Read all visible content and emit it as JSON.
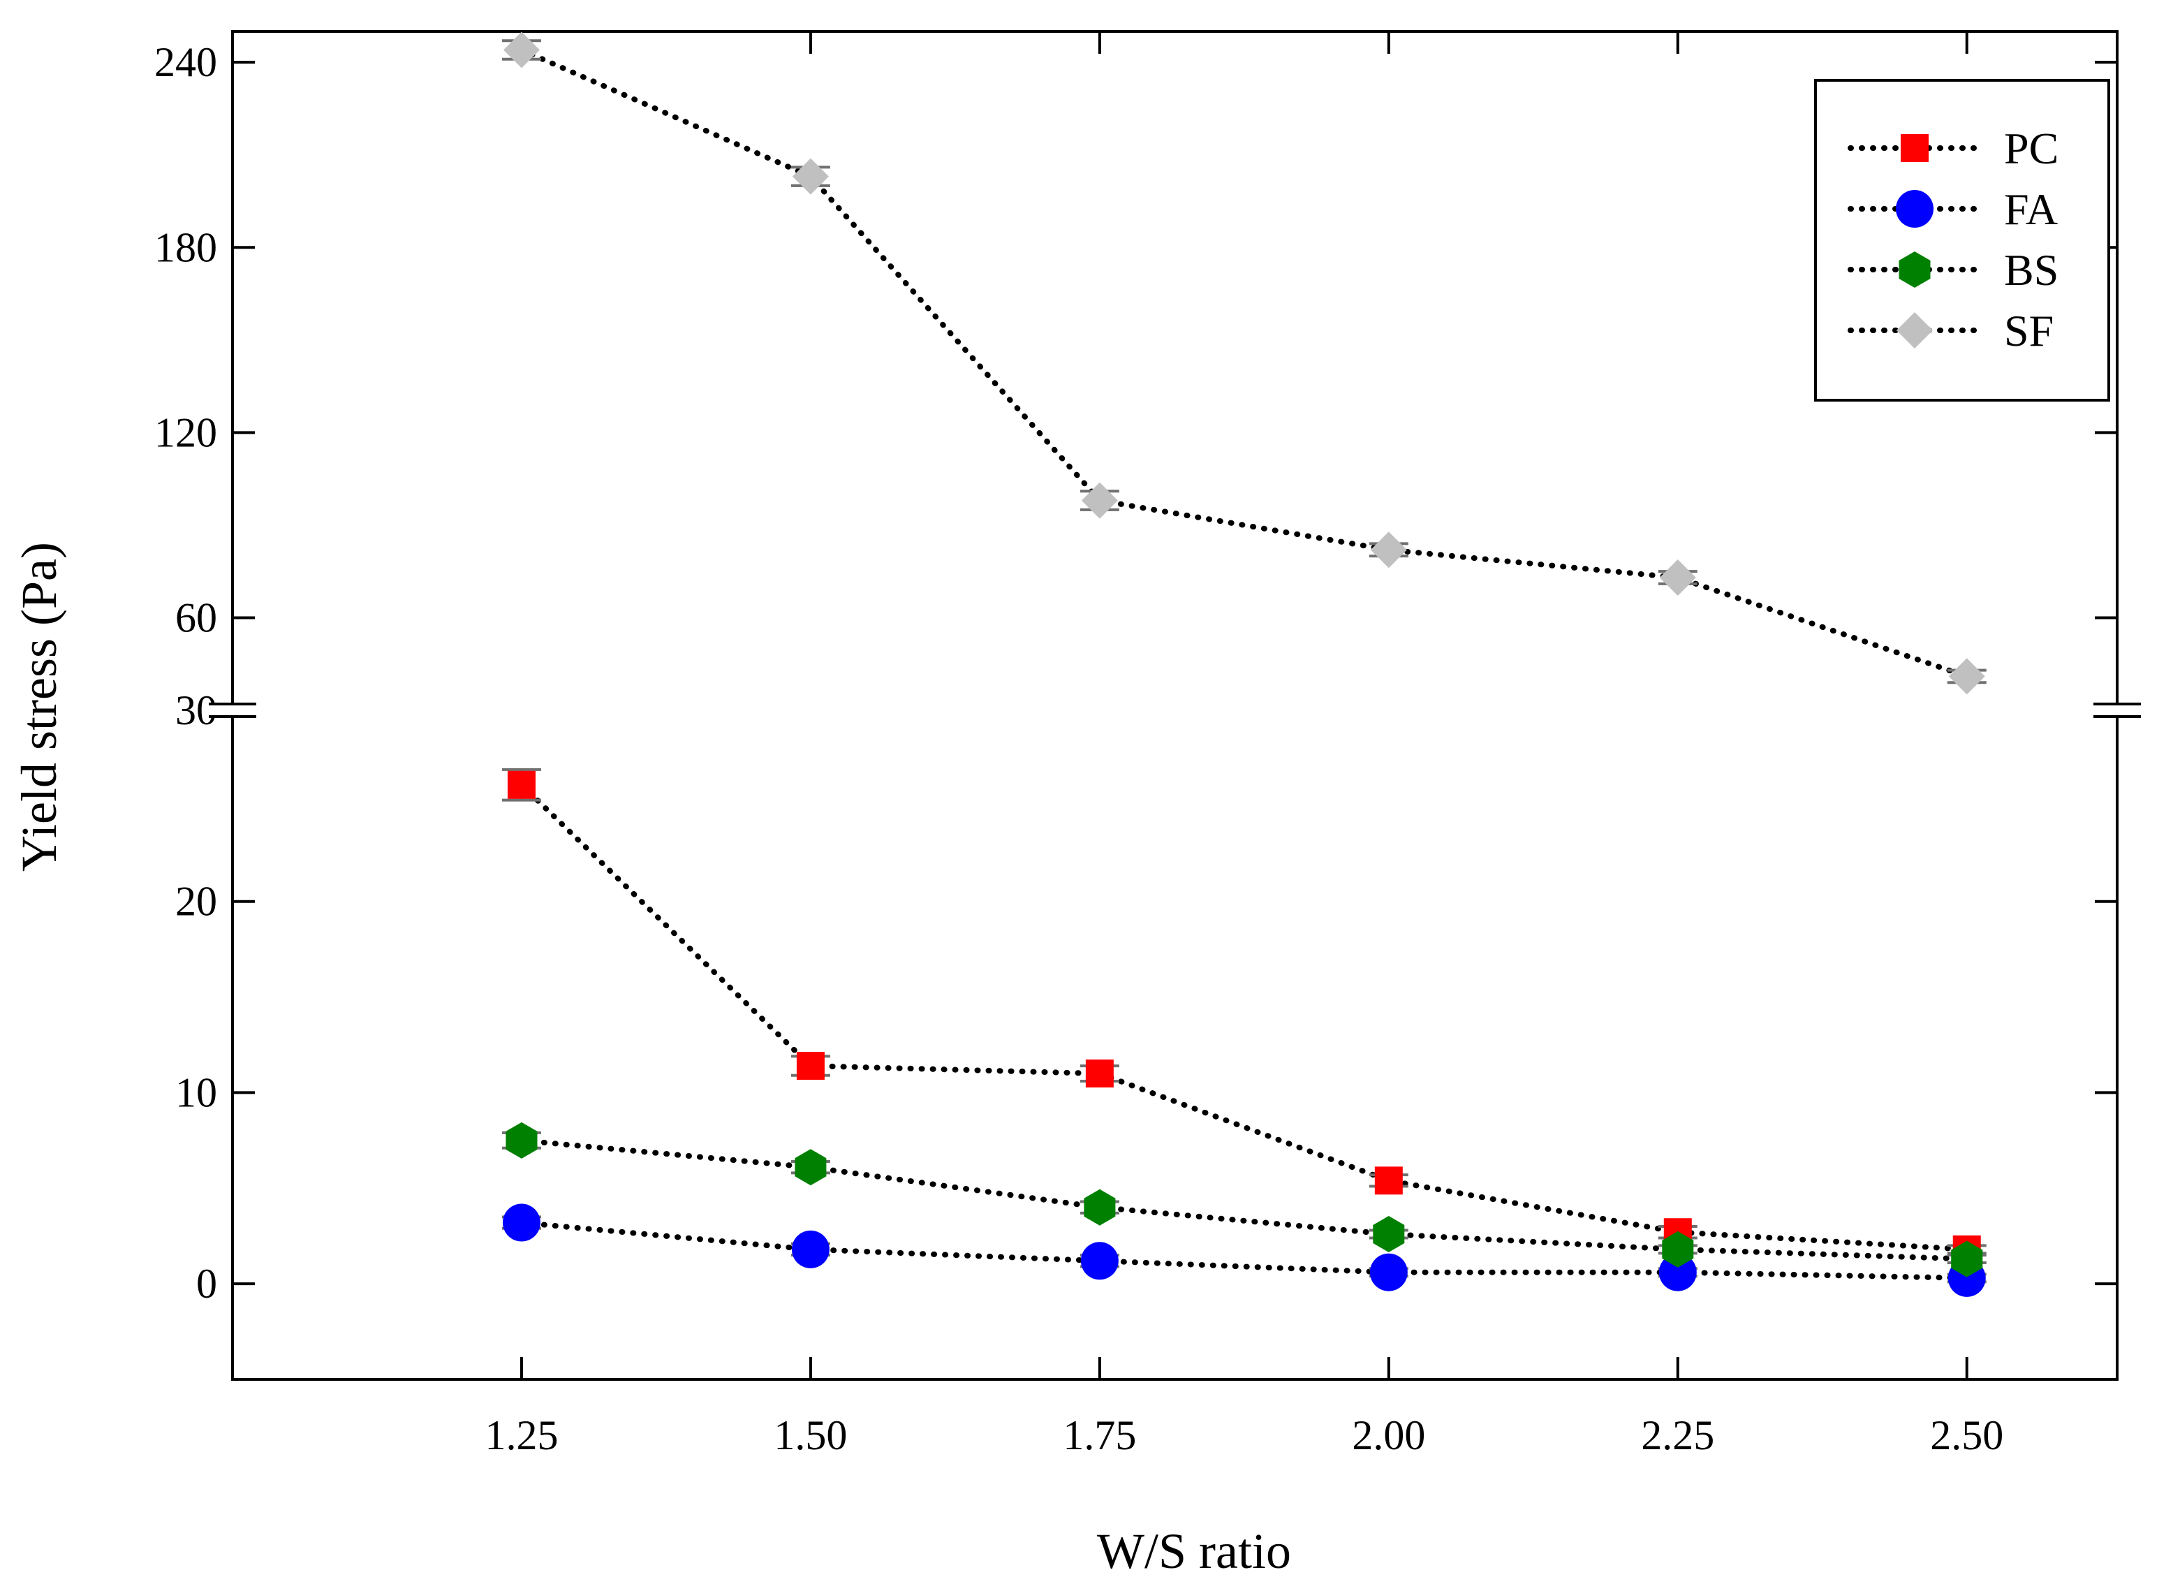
{
  "chart_data": {
    "type": "line",
    "title": "",
    "xlabel": "W/S ratio",
    "ylabel": "Yield stress (Pa)",
    "x": [
      1.25,
      1.5,
      1.75,
      2.0,
      2.25,
      2.5
    ],
    "x_tick_labels": [
      "1.25",
      "1.50",
      "1.75",
      "2.00",
      "2.25",
      "2.50"
    ],
    "xlim": [
      1.0,
      2.63
    ],
    "y_axis_break": true,
    "y_lower_segment": {
      "range": [
        -5,
        30
      ],
      "ticks": [
        0,
        10,
        20,
        30
      ]
    },
    "y_upper_segment": {
      "range": [
        30,
        250
      ],
      "ticks": [
        60,
        120,
        180,
        240
      ]
    },
    "legend_position": "top-right",
    "line_style": "dotted",
    "series": [
      {
        "name": "PC",
        "marker": "square",
        "color": "#ff0000",
        "values": [
          26.1,
          11.4,
          11.0,
          5.4,
          2.7,
          1.8
        ],
        "errors": [
          0.8,
          0.5,
          0.4,
          0.3,
          0.3,
          0.2
        ]
      },
      {
        "name": "FA",
        "marker": "circle",
        "color": "#0000ff",
        "values": [
          3.2,
          1.8,
          1.2,
          0.6,
          0.6,
          0.3
        ],
        "errors": [
          0.3,
          0.3,
          0.3,
          0.2,
          0.2,
          0.2
        ]
      },
      {
        "name": "BS",
        "marker": "hexagon",
        "color": "#008000",
        "values": [
          7.5,
          6.1,
          4.0,
          2.6,
          1.8,
          1.3
        ],
        "errors": [
          0.4,
          0.3,
          0.3,
          0.2,
          0.2,
          0.2
        ]
      },
      {
        "name": "SF",
        "marker": "diamond",
        "color": "#c0c0c0",
        "values": [
          244,
          203,
          98,
          82,
          73,
          41
        ],
        "errors": [
          3,
          3,
          3,
          2,
          2,
          2
        ]
      }
    ]
  }
}
